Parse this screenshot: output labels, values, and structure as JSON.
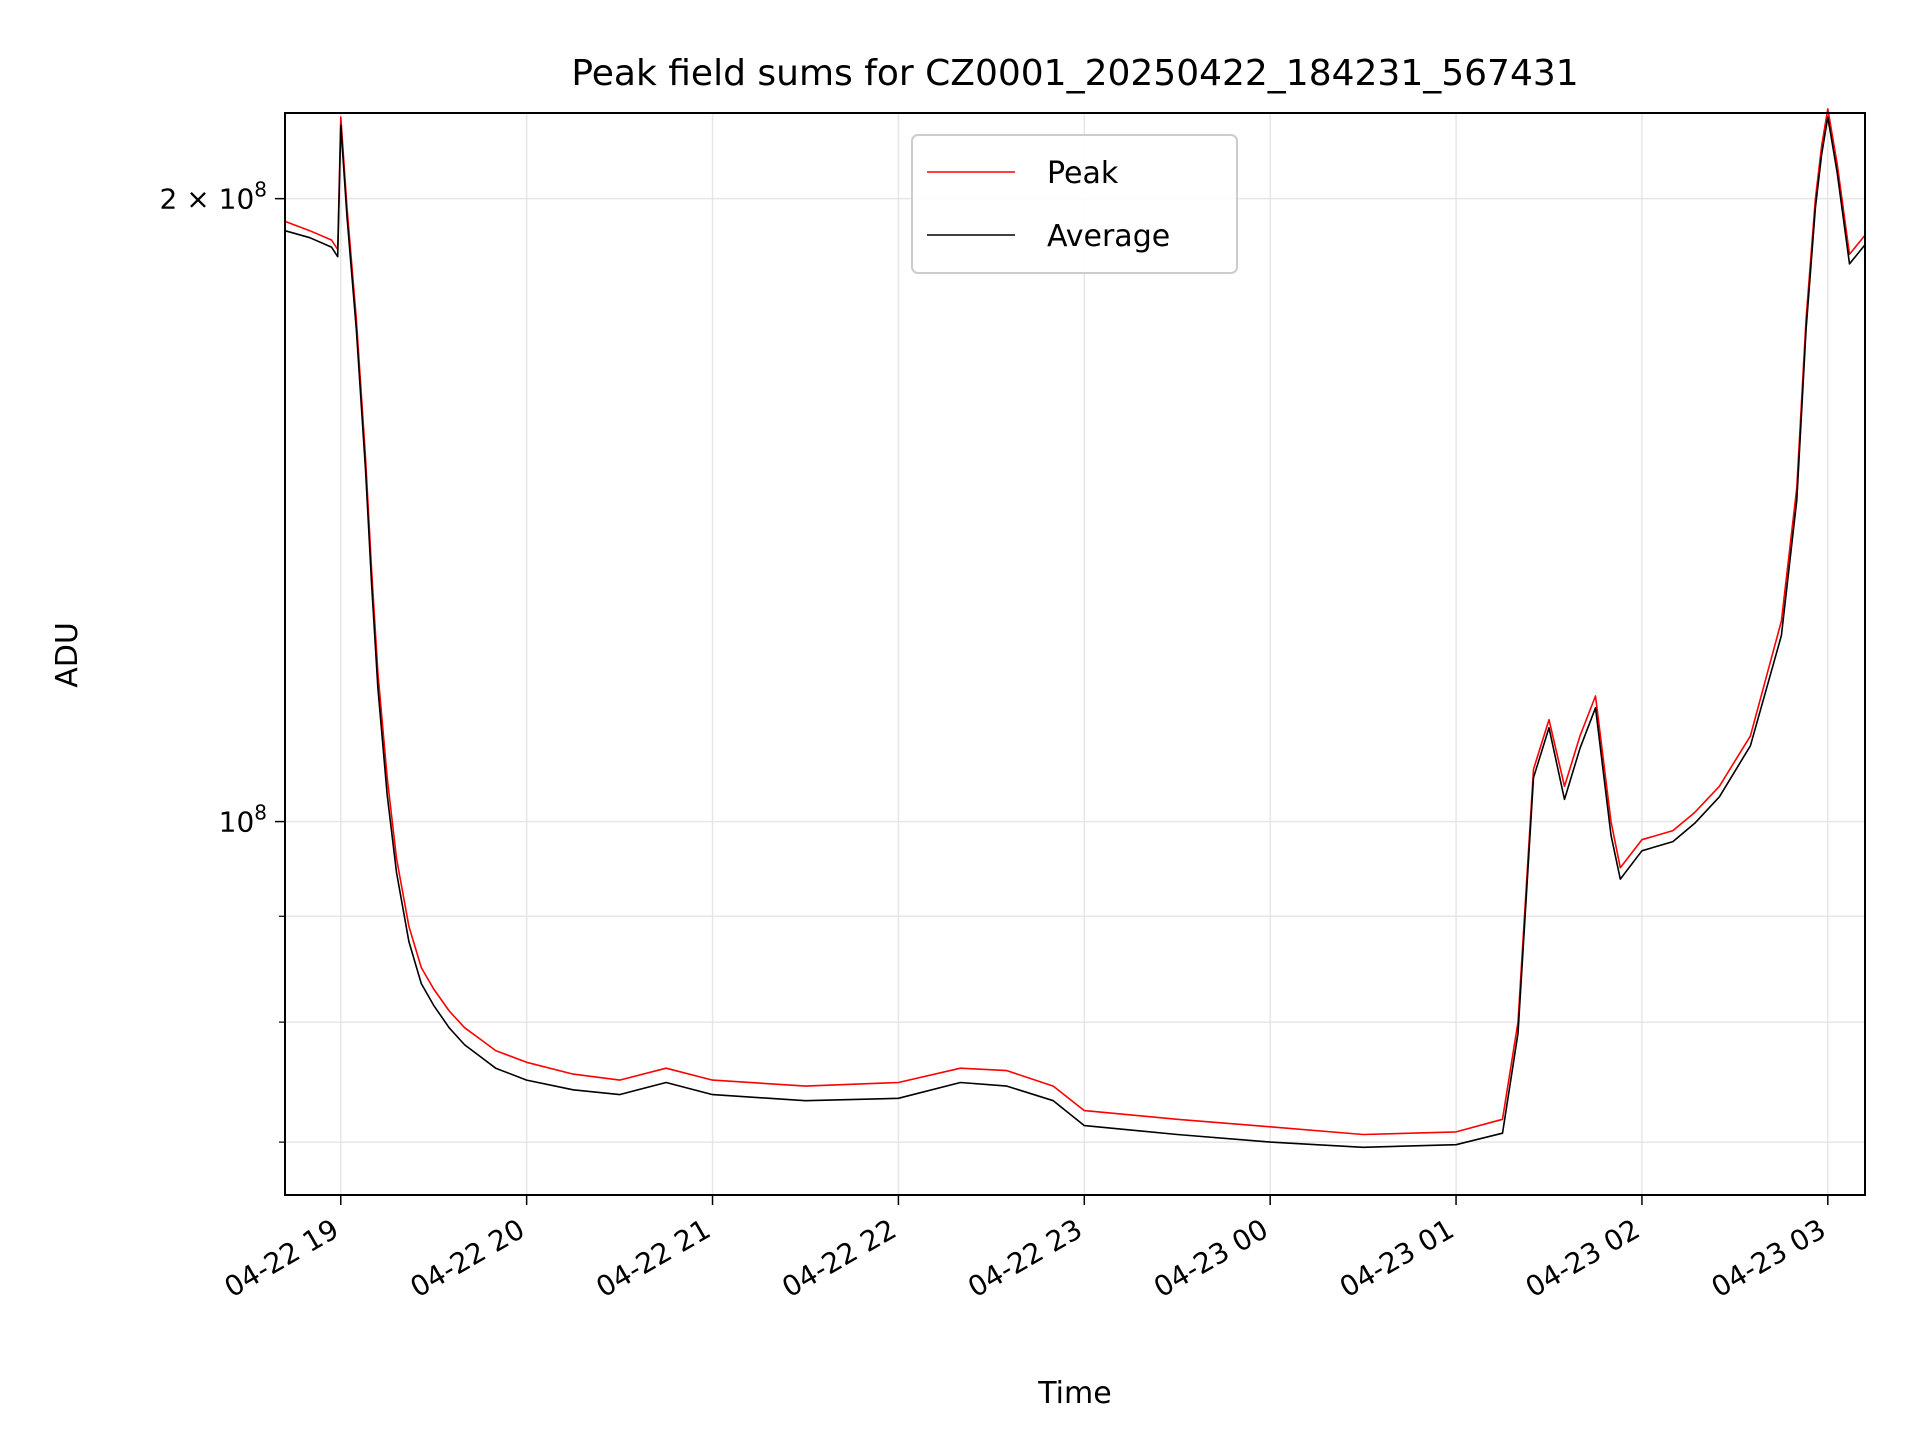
{
  "chart_data": {
    "type": "line",
    "title": "Peak field sums for CZ0001_20250422_184231_567431",
    "xlabel": "Time",
    "ylabel": "ADU",
    "y_scale": "log",
    "grid": true,
    "legend_position": "top-center",
    "xlim": [
      "2025-04-22 18:42",
      "2025-04-23 03:12"
    ],
    "ylim": [
      66000000,
      220000000
    ],
    "x_ticks": [
      {
        "value": "2025-04-22 19:00",
        "label": "04-22 19"
      },
      {
        "value": "2025-04-22 20:00",
        "label": "04-22 20"
      },
      {
        "value": "2025-04-22 21:00",
        "label": "04-22 21"
      },
      {
        "value": "2025-04-22 22:00",
        "label": "04-22 22"
      },
      {
        "value": "2025-04-22 23:00",
        "label": "04-22 23"
      },
      {
        "value": "2025-04-23 00:00",
        "label": "04-23 00"
      },
      {
        "value": "2025-04-23 01:00",
        "label": "04-23 01"
      },
      {
        "value": "2025-04-23 02:00",
        "label": "04-23 02"
      },
      {
        "value": "2025-04-23 03:00",
        "label": "04-23 03"
      }
    ],
    "y_major_ticks": [
      {
        "value": 100000000,
        "base": "10",
        "exp": "8"
      },
      {
        "value": 200000000,
        "prefix": "2 × ",
        "base": "10",
        "exp": "8"
      }
    ],
    "y_minor_ticks": [
      70000000,
      80000000,
      90000000
    ],
    "series": [
      {
        "name": "Peak",
        "color": "#ff0000",
        "x": [
          "2025-04-22 18:42",
          "2025-04-22 18:50",
          "2025-04-22 18:57",
          "2025-04-22 18:59",
          "2025-04-22 19:00",
          "2025-04-22 19:02",
          "2025-04-22 19:05",
          "2025-04-22 19:08",
          "2025-04-22 19:10",
          "2025-04-22 19:12",
          "2025-04-22 19:15",
          "2025-04-22 19:18",
          "2025-04-22 19:22",
          "2025-04-22 19:26",
          "2025-04-22 19:30",
          "2025-04-22 19:35",
          "2025-04-22 19:40",
          "2025-04-22 19:45",
          "2025-04-22 19:50",
          "2025-04-22 20:00",
          "2025-04-22 20:15",
          "2025-04-22 20:30",
          "2025-04-22 20:45",
          "2025-04-22 21:00",
          "2025-04-22 21:30",
          "2025-04-22 22:00",
          "2025-04-22 22:20",
          "2025-04-22 22:35",
          "2025-04-22 22:50",
          "2025-04-22 23:00",
          "2025-04-22 23:30",
          "2025-04-23 00:00",
          "2025-04-23 00:30",
          "2025-04-23 01:00",
          "2025-04-23 01:15",
          "2025-04-23 01:20",
          "2025-04-23 01:25",
          "2025-04-23 01:30",
          "2025-04-23 01:35",
          "2025-04-23 01:40",
          "2025-04-23 01:45",
          "2025-04-23 01:50",
          "2025-04-23 01:53",
          "2025-04-23 02:00",
          "2025-04-23 02:10",
          "2025-04-23 02:17",
          "2025-04-23 02:25",
          "2025-04-23 02:35",
          "2025-04-23 02:45",
          "2025-04-23 02:50",
          "2025-04-23 02:53",
          "2025-04-23 02:56",
          "2025-04-23 02:58",
          "2025-04-23 03:00",
          "2025-04-23 03:03",
          "2025-04-23 03:07",
          "2025-04-23 03:12"
        ],
        "values": [
          195000000,
          193000000,
          191000000,
          189000000,
          219000000,
          198000000,
          175000000,
          150000000,
          132000000,
          118000000,
          105000000,
          96000000,
          89000000,
          85000000,
          83000000,
          81000000,
          79500000,
          78500000,
          77500000,
          76500000,
          75500000,
          75000000,
          76000000,
          75000000,
          74500000,
          74800000,
          76000000,
          75800000,
          74500000,
          72500000,
          71800000,
          71200000,
          70600000,
          70800000,
          71800000,
          80000000,
          106000000,
          112000000,
          104000000,
          110000000,
          115000000,
          100000000,
          95000000,
          98000000,
          99000000,
          101000000,
          104000000,
          110000000,
          125000000,
          145000000,
          175000000,
          200000000,
          212000000,
          221000000,
          208000000,
          188000000,
          192000000
        ]
      },
      {
        "name": "Average",
        "color": "#000000",
        "x": [
          "2025-04-22 18:42",
          "2025-04-22 18:50",
          "2025-04-22 18:57",
          "2025-04-22 18:59",
          "2025-04-22 19:00",
          "2025-04-22 19:02",
          "2025-04-22 19:05",
          "2025-04-22 19:08",
          "2025-04-22 19:10",
          "2025-04-22 19:12",
          "2025-04-22 19:15",
          "2025-04-22 19:18",
          "2025-04-22 19:22",
          "2025-04-22 19:26",
          "2025-04-22 19:30",
          "2025-04-22 19:35",
          "2025-04-22 19:40",
          "2025-04-22 19:45",
          "2025-04-22 19:50",
          "2025-04-22 20:00",
          "2025-04-22 20:15",
          "2025-04-22 20:30",
          "2025-04-22 20:45",
          "2025-04-22 21:00",
          "2025-04-22 21:30",
          "2025-04-22 22:00",
          "2025-04-22 22:20",
          "2025-04-22 22:35",
          "2025-04-22 22:50",
          "2025-04-22 23:00",
          "2025-04-22 23:30",
          "2025-04-23 00:00",
          "2025-04-23 00:30",
          "2025-04-23 01:00",
          "2025-04-23 01:15",
          "2025-04-23 01:20",
          "2025-04-23 01:25",
          "2025-04-23 01:30",
          "2025-04-23 01:35",
          "2025-04-23 01:40",
          "2025-04-23 01:45",
          "2025-04-23 01:50",
          "2025-04-23 01:53",
          "2025-04-23 02:00",
          "2025-04-23 02:10",
          "2025-04-23 02:17",
          "2025-04-23 02:25",
          "2025-04-23 02:35",
          "2025-04-23 02:45",
          "2025-04-23 02:50",
          "2025-04-23 02:53",
          "2025-04-23 02:56",
          "2025-04-23 02:58",
          "2025-04-23 03:00",
          "2025-04-23 03:03",
          "2025-04-23 03:07",
          "2025-04-23 03:12"
        ],
        "values": [
          193000000,
          191500000,
          189500000,
          187500000,
          217000000,
          196000000,
          173000000,
          148000000,
          130000000,
          116000000,
          103000000,
          94500000,
          87500000,
          83500000,
          81500000,
          79500000,
          78000000,
          77000000,
          76000000,
          75000000,
          74200000,
          73800000,
          74800000,
          73800000,
          73300000,
          73500000,
          74800000,
          74500000,
          73300000,
          71300000,
          70600000,
          70000000,
          69600000,
          69800000,
          70700000,
          79000000,
          105000000,
          111000000,
          102500000,
          108500000,
          113500000,
          98500000,
          93800000,
          96800000,
          97800000,
          99800000,
          102800000,
          108800000,
          123000000,
          143000000,
          173000000,
          198000000,
          210000000,
          219000000,
          206000000,
          186000000,
          190000000
        ]
      }
    ]
  }
}
